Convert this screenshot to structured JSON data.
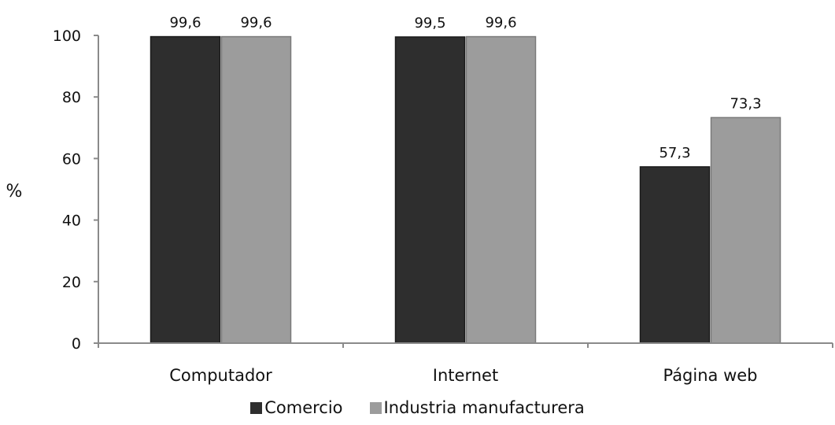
{
  "chart_data": {
    "type": "bar",
    "categories": [
      "Computador",
      "Internet",
      "Página web"
    ],
    "series": [
      {
        "name": "Comercio",
        "values": [
          99.6,
          99.5,
          57.3
        ],
        "labels": [
          "99,6",
          "99,5",
          "57,3"
        ],
        "color": "#2e2e2e"
      },
      {
        "name": "Industria manufacturera",
        "values": [
          99.6,
          99.6,
          73.3
        ],
        "labels": [
          "99,6",
          "99,6",
          "73,3"
        ],
        "color": "#9c9c9c"
      }
    ],
    "ylabel": "%",
    "ylim": [
      0,
      100
    ],
    "yticks": [
      "0",
      "20",
      "40",
      "60",
      "80",
      "100"
    ],
    "grid": false,
    "legend_position": "bottom"
  }
}
